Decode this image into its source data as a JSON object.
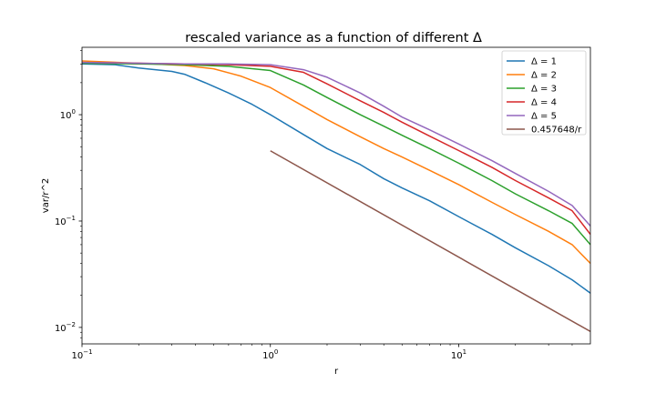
{
  "chart_data": {
    "type": "line",
    "title": "rescaled variance as a function of different Δ",
    "xlabel": "r",
    "ylabel": "var/r^2",
    "xscale": "log",
    "yscale": "log",
    "xlim": [
      0.1,
      50
    ],
    "ylim": [
      0.007,
      4.3
    ],
    "grid": false,
    "legend_position": "top-right",
    "x_ticks": [
      {
        "value": 0.1,
        "base": "10",
        "exp": "−1"
      },
      {
        "value": 1,
        "base": "10",
        "exp": "0"
      },
      {
        "value": 10,
        "base": "10",
        "exp": "1"
      }
    ],
    "y_ticks": [
      {
        "value": 0.01,
        "base": "10",
        "exp": "−2"
      },
      {
        "value": 0.1,
        "base": "10",
        "exp": "−1"
      },
      {
        "value": 1,
        "base": "10",
        "exp": "0"
      }
    ],
    "series": [
      {
        "name": "Δ = 1",
        "color": "#1f77b4",
        "x": [
          0.1,
          0.15,
          0.2,
          0.3,
          0.35,
          0.45,
          0.6,
          0.8,
          1.0,
          1.5,
          2.0,
          3.0,
          4.0,
          5.0,
          7.0,
          10.0,
          15.0,
          20.0,
          30.0,
          40.0,
          50.0
        ],
        "y": [
          3.0,
          2.95,
          2.75,
          2.55,
          2.4,
          2.0,
          1.6,
          1.25,
          1.0,
          0.65,
          0.48,
          0.34,
          0.25,
          0.205,
          0.155,
          0.11,
          0.075,
          0.056,
          0.038,
          0.028,
          0.021
        ]
      },
      {
        "name": "Δ = 2",
        "color": "#ff7f0e",
        "x": [
          0.1,
          0.2,
          0.35,
          0.5,
          0.7,
          1.0,
          1.5,
          2.0,
          3.0,
          4.0,
          5.0,
          7.0,
          10.0,
          15.0,
          20.0,
          30.0,
          40.0,
          50.0
        ],
        "y": [
          3.2,
          3.05,
          2.9,
          2.7,
          2.3,
          1.8,
          1.2,
          0.9,
          0.62,
          0.48,
          0.4,
          0.3,
          0.22,
          0.15,
          0.115,
          0.08,
          0.06,
          0.04
        ]
      },
      {
        "name": "Δ = 3",
        "color": "#2ca02c",
        "x": [
          0.1,
          0.2,
          0.35,
          0.6,
          1.0,
          1.5,
          2.0,
          3.0,
          4.0,
          5.0,
          7.0,
          10.0,
          15.0,
          20.0,
          30.0,
          40.0,
          50.0
        ],
        "y": [
          3.05,
          3.0,
          2.95,
          2.85,
          2.6,
          1.9,
          1.45,
          1.0,
          0.78,
          0.64,
          0.48,
          0.35,
          0.24,
          0.18,
          0.125,
          0.095,
          0.06
        ]
      },
      {
        "name": "Δ = 4",
        "color": "#d62728",
        "x": [
          0.1,
          0.2,
          0.35,
          0.6,
          1.0,
          1.5,
          2.0,
          3.0,
          4.0,
          5.0,
          7.0,
          10.0,
          15.0,
          20.0,
          30.0,
          40.0,
          50.0
        ],
        "y": [
          3.1,
          3.05,
          3.0,
          2.95,
          2.85,
          2.5,
          1.95,
          1.35,
          1.05,
          0.85,
          0.63,
          0.46,
          0.32,
          0.24,
          0.165,
          0.125,
          0.075
        ]
      },
      {
        "name": "Δ = 5",
        "color": "#9467bd",
        "x": [
          0.1,
          0.2,
          0.35,
          0.6,
          1.0,
          1.5,
          2.0,
          3.0,
          4.0,
          5.0,
          7.0,
          10.0,
          15.0,
          20.0,
          30.0,
          40.0,
          50.0
        ],
        "y": [
          3.1,
          3.05,
          3.0,
          3.0,
          2.95,
          2.65,
          2.25,
          1.6,
          1.2,
          0.95,
          0.72,
          0.53,
          0.37,
          0.28,
          0.19,
          0.14,
          0.09
        ]
      },
      {
        "name": "0.457648/r",
        "color": "#8c564b",
        "x": [
          1.0,
          50.0
        ],
        "y": [
          0.457648,
          0.00915296
        ]
      }
    ]
  }
}
